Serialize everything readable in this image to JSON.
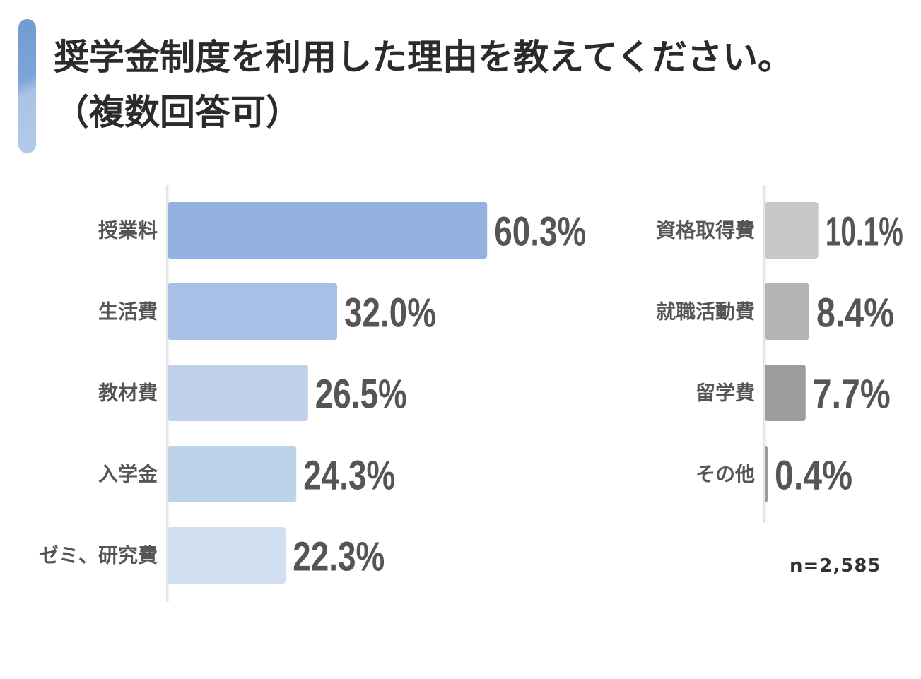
{
  "title": {
    "line1": "奨学金制度を利用した理由を教えてください。",
    "line2": "（複数回答可）"
  },
  "sample_size": "n=2,585",
  "colors": {
    "accent": "#7ea5d8",
    "text": "#555555"
  },
  "chart_data": [
    {
      "type": "bar",
      "orientation": "horizontal",
      "categories": [
        "授業料",
        "生活費",
        "教材費",
        "入学金",
        "ゼミ、研究費"
      ],
      "values": [
        60.3,
        32.0,
        26.5,
        24.3,
        22.3
      ],
      "value_labels": [
        "60.3%",
        "32.0%",
        "26.5%",
        "24.3%",
        "22.3%"
      ],
      "colors": [
        "#93b2df",
        "#a9c0e6",
        "#c0d1ec",
        "#bcd3ea",
        "#d0e0f1"
      ],
      "unit": "%"
    },
    {
      "type": "bar",
      "orientation": "horizontal",
      "categories": [
        "資格取得費",
        "就職活動費",
        "留学費",
        "その他"
      ],
      "values": [
        10.1,
        8.4,
        7.7,
        0.4
      ],
      "value_labels": [
        "10.1%",
        "8.4%",
        "7.7%",
        "0.4%"
      ],
      "colors": [
        "#c8c8c8",
        "#b3b3b3",
        "#9d9d9d",
        "#999999"
      ],
      "unit": "%"
    }
  ]
}
